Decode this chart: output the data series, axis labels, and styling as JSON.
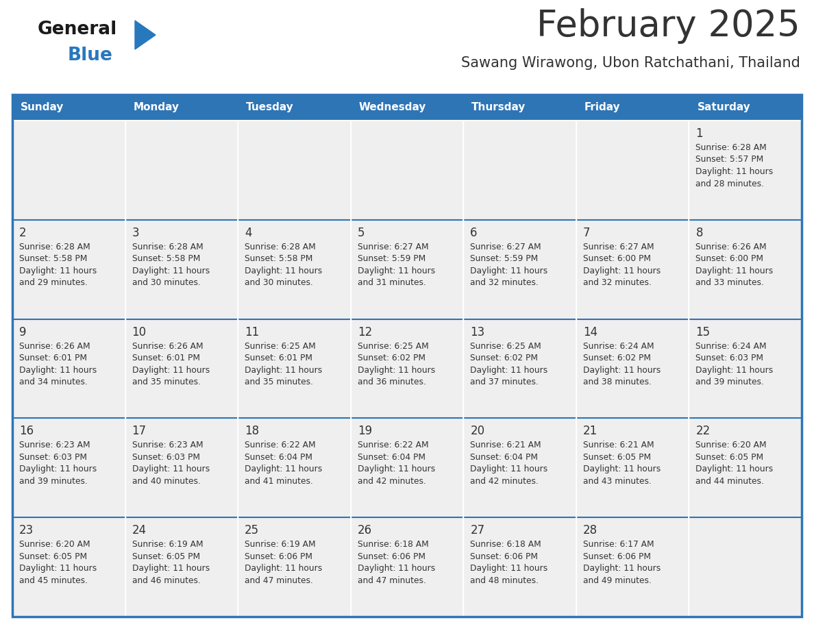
{
  "title": "February 2025",
  "subtitle": "Sawang Wirawong, Ubon Ratchathani, Thailand",
  "header_color": "#2E75B6",
  "header_text_color": "#FFFFFF",
  "cell_bg_color": "#EFEFEF",
  "cell_bg_white": "#FFFFFF",
  "border_color": "#2E75B6",
  "text_color": "#333333",
  "day_headers": [
    "Sunday",
    "Monday",
    "Tuesday",
    "Wednesday",
    "Thursday",
    "Friday",
    "Saturday"
  ],
  "weeks": [
    [
      {
        "day": "",
        "info": ""
      },
      {
        "day": "",
        "info": ""
      },
      {
        "day": "",
        "info": ""
      },
      {
        "day": "",
        "info": ""
      },
      {
        "day": "",
        "info": ""
      },
      {
        "day": "",
        "info": ""
      },
      {
        "day": "1",
        "info": "Sunrise: 6:28 AM\nSunset: 5:57 PM\nDaylight: 11 hours\nand 28 minutes."
      }
    ],
    [
      {
        "day": "2",
        "info": "Sunrise: 6:28 AM\nSunset: 5:58 PM\nDaylight: 11 hours\nand 29 minutes."
      },
      {
        "day": "3",
        "info": "Sunrise: 6:28 AM\nSunset: 5:58 PM\nDaylight: 11 hours\nand 30 minutes."
      },
      {
        "day": "4",
        "info": "Sunrise: 6:28 AM\nSunset: 5:58 PM\nDaylight: 11 hours\nand 30 minutes."
      },
      {
        "day": "5",
        "info": "Sunrise: 6:27 AM\nSunset: 5:59 PM\nDaylight: 11 hours\nand 31 minutes."
      },
      {
        "day": "6",
        "info": "Sunrise: 6:27 AM\nSunset: 5:59 PM\nDaylight: 11 hours\nand 32 minutes."
      },
      {
        "day": "7",
        "info": "Sunrise: 6:27 AM\nSunset: 6:00 PM\nDaylight: 11 hours\nand 32 minutes."
      },
      {
        "day": "8",
        "info": "Sunrise: 6:26 AM\nSunset: 6:00 PM\nDaylight: 11 hours\nand 33 minutes."
      }
    ],
    [
      {
        "day": "9",
        "info": "Sunrise: 6:26 AM\nSunset: 6:01 PM\nDaylight: 11 hours\nand 34 minutes."
      },
      {
        "day": "10",
        "info": "Sunrise: 6:26 AM\nSunset: 6:01 PM\nDaylight: 11 hours\nand 35 minutes."
      },
      {
        "day": "11",
        "info": "Sunrise: 6:25 AM\nSunset: 6:01 PM\nDaylight: 11 hours\nand 35 minutes."
      },
      {
        "day": "12",
        "info": "Sunrise: 6:25 AM\nSunset: 6:02 PM\nDaylight: 11 hours\nand 36 minutes."
      },
      {
        "day": "13",
        "info": "Sunrise: 6:25 AM\nSunset: 6:02 PM\nDaylight: 11 hours\nand 37 minutes."
      },
      {
        "day": "14",
        "info": "Sunrise: 6:24 AM\nSunset: 6:02 PM\nDaylight: 11 hours\nand 38 minutes."
      },
      {
        "day": "15",
        "info": "Sunrise: 6:24 AM\nSunset: 6:03 PM\nDaylight: 11 hours\nand 39 minutes."
      }
    ],
    [
      {
        "day": "16",
        "info": "Sunrise: 6:23 AM\nSunset: 6:03 PM\nDaylight: 11 hours\nand 39 minutes."
      },
      {
        "day": "17",
        "info": "Sunrise: 6:23 AM\nSunset: 6:03 PM\nDaylight: 11 hours\nand 40 minutes."
      },
      {
        "day": "18",
        "info": "Sunrise: 6:22 AM\nSunset: 6:04 PM\nDaylight: 11 hours\nand 41 minutes."
      },
      {
        "day": "19",
        "info": "Sunrise: 6:22 AM\nSunset: 6:04 PM\nDaylight: 11 hours\nand 42 minutes."
      },
      {
        "day": "20",
        "info": "Sunrise: 6:21 AM\nSunset: 6:04 PM\nDaylight: 11 hours\nand 42 minutes."
      },
      {
        "day": "21",
        "info": "Sunrise: 6:21 AM\nSunset: 6:05 PM\nDaylight: 11 hours\nand 43 minutes."
      },
      {
        "day": "22",
        "info": "Sunrise: 6:20 AM\nSunset: 6:05 PM\nDaylight: 11 hours\nand 44 minutes."
      }
    ],
    [
      {
        "day": "23",
        "info": "Sunrise: 6:20 AM\nSunset: 6:05 PM\nDaylight: 11 hours\nand 45 minutes."
      },
      {
        "day": "24",
        "info": "Sunrise: 6:19 AM\nSunset: 6:05 PM\nDaylight: 11 hours\nand 46 minutes."
      },
      {
        "day": "25",
        "info": "Sunrise: 6:19 AM\nSunset: 6:06 PM\nDaylight: 11 hours\nand 47 minutes."
      },
      {
        "day": "26",
        "info": "Sunrise: 6:18 AM\nSunset: 6:06 PM\nDaylight: 11 hours\nand 47 minutes."
      },
      {
        "day": "27",
        "info": "Sunrise: 6:18 AM\nSunset: 6:06 PM\nDaylight: 11 hours\nand 48 minutes."
      },
      {
        "day": "28",
        "info": "Sunrise: 6:17 AM\nSunset: 6:06 PM\nDaylight: 11 hours\nand 49 minutes."
      },
      {
        "day": "",
        "info": ""
      }
    ]
  ],
  "logo_general_color": "#1a1a1a",
  "logo_blue_color": "#2878BE",
  "logo_triangle_color": "#2878BE",
  "fig_width": 11.88,
  "fig_height": 9.18,
  "dpi": 100
}
